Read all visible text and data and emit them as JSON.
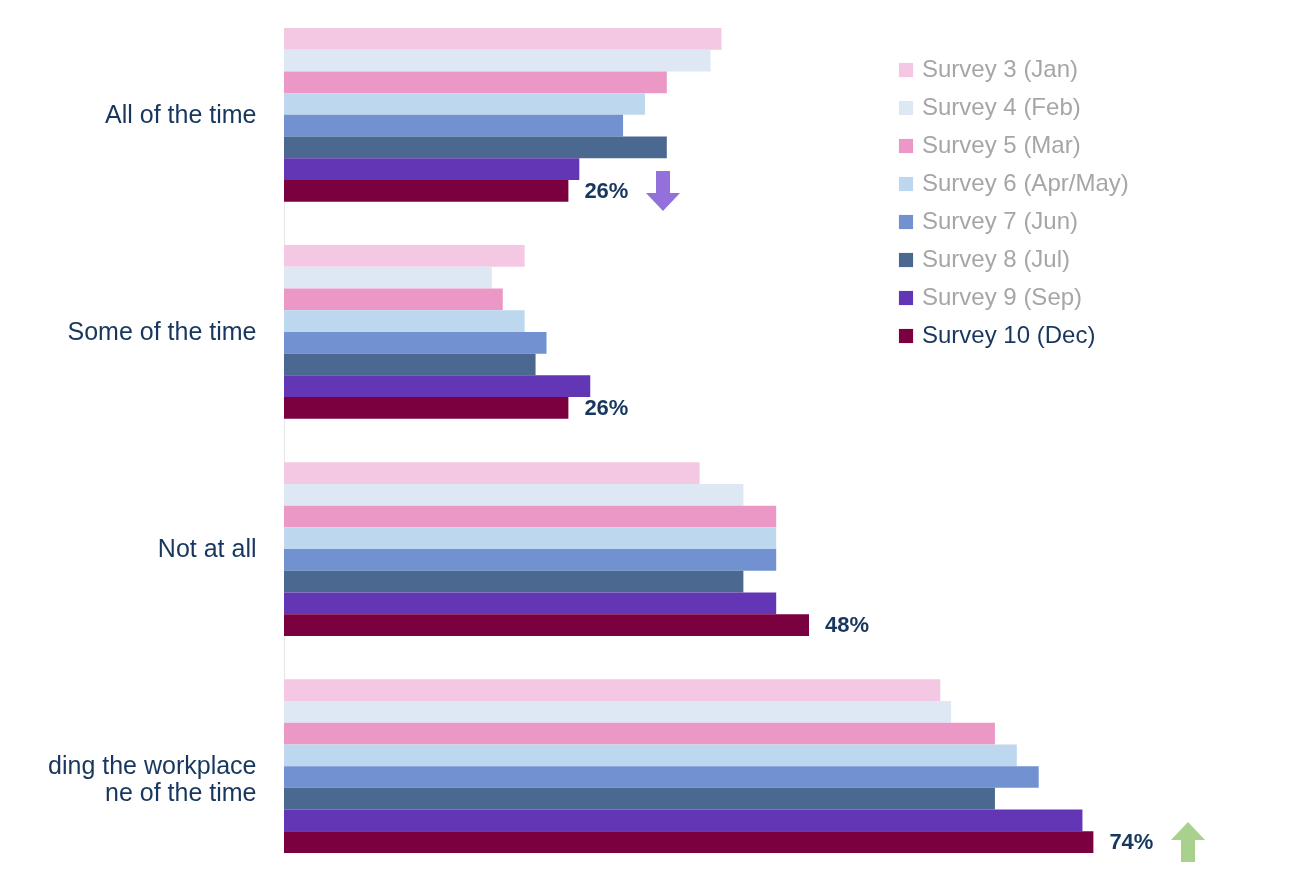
{
  "chart_data": {
    "type": "bar",
    "orientation": "horizontal",
    "categories": [
      "All of the time",
      "Some of the time",
      "Not at all",
      "ding the workplace\nne of the time"
    ],
    "series": [
      {
        "name": "Survey 3 (Jan)",
        "color": "#f4c8e2",
        "values": [
          40,
          22,
          38,
          60
        ]
      },
      {
        "name": "Survey 4 (Feb)",
        "color": "#dde8f4",
        "values": [
          39,
          19,
          42,
          61
        ]
      },
      {
        "name": "Survey 5 (Mar)",
        "color": "#eb98c6",
        "values": [
          35,
          20,
          45,
          65
        ]
      },
      {
        "name": "Survey 6 (Apr/May)",
        "color": "#bdd7ee",
        "values": [
          33,
          22,
          45,
          67
        ]
      },
      {
        "name": "Survey 7 (Jun)",
        "color": "#7191d0",
        "values": [
          31,
          24,
          45,
          69
        ]
      },
      {
        "name": "Survey 8 (Jul)",
        "color": "#4a6890",
        "values": [
          35,
          23,
          42,
          65
        ]
      },
      {
        "name": "Survey 9 (Sep)",
        "color": "#6236b4",
        "values": [
          27,
          28,
          45,
          73
        ]
      },
      {
        "name": "Survey 10 (Dec)",
        "color": "#7a0040",
        "values": [
          26,
          26,
          48,
          74
        ],
        "value_labels": [
          "26%",
          "26%",
          "48%",
          "74%"
        ]
      }
    ],
    "xlim": [
      0,
      80
    ],
    "tick_labels": "y",
    "legend": "top right"
  }
}
